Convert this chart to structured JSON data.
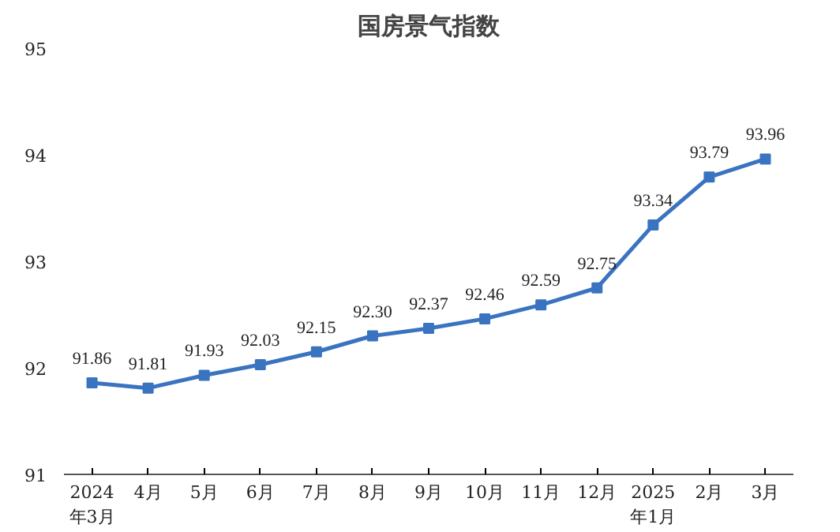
{
  "chart_data": {
    "type": "line",
    "title": "国房景气指数",
    "categories": [
      "2024\n年3月",
      "4月",
      "5月",
      "6月",
      "7月",
      "8月",
      "9月",
      "10月",
      "11月",
      "12月",
      "2025\n年1月",
      "2月",
      "3月"
    ],
    "series": [
      {
        "color": "#3a73c0",
        "values": [
          91.86,
          91.81,
          91.93,
          92.03,
          92.15,
          92.3,
          92.37,
          92.46,
          92.59,
          92.75,
          93.34,
          93.79,
          93.96
        ],
        "value_labels": [
          "91.86",
          "91.81",
          "91.93",
          "92.03",
          "92.15",
          "92.30",
          "92.37",
          "92.46",
          "92.59",
          "92.75",
          "93.34",
          "93.79",
          "93.96"
        ]
      }
    ],
    "ylim": [
      91,
      95
    ],
    "yticks": [
      91,
      92,
      93,
      94,
      95
    ],
    "grid": false,
    "marker": "square",
    "line_style": "solid"
  }
}
